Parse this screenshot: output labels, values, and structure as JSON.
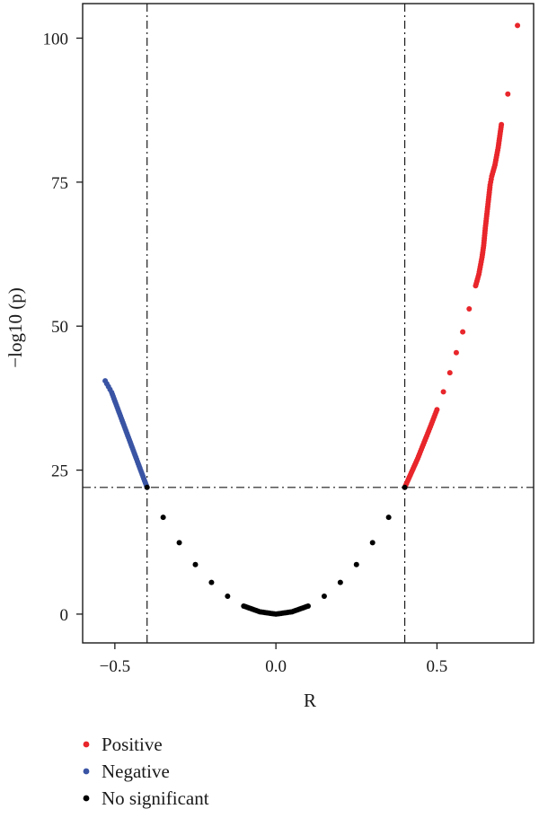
{
  "chart_data": {
    "type": "scatter",
    "title": "",
    "xlabel": "R",
    "ylabel": "−log10 (p)",
    "xlim": [
      -0.6,
      0.8
    ],
    "ylim": [
      -5,
      106
    ],
    "x_ticks": [
      -0.5,
      0.0,
      0.5
    ],
    "x_tick_labels": [
      "−0.5",
      "0.0",
      "0.5"
    ],
    "y_ticks": [
      0,
      25,
      50,
      75,
      100
    ],
    "y_tick_labels": [
      "0",
      "25",
      "50",
      "75",
      "100"
    ],
    "grid": false,
    "legend_position": "bottom-left",
    "thresholds": {
      "r_negative": -0.4,
      "r_positive": 0.4,
      "neg_log10_p": 22
    },
    "series": [
      {
        "name": "Positive",
        "color": "#e8262b",
        "points": [
          [
            0.4,
            22.0
          ],
          [
            0.42,
            24.5
          ],
          [
            0.44,
            27.0
          ],
          [
            0.46,
            29.8
          ],
          [
            0.48,
            32.6
          ],
          [
            0.5,
            35.5
          ],
          [
            0.52,
            38.6
          ],
          [
            0.54,
            41.9
          ],
          [
            0.56,
            45.4
          ],
          [
            0.58,
            49.0
          ],
          [
            0.6,
            53.0
          ],
          [
            0.62,
            57.0
          ],
          [
            0.63,
            59.0
          ],
          [
            0.64,
            62.0
          ],
          [
            0.645,
            64.0
          ],
          [
            0.65,
            67.0
          ],
          [
            0.655,
            69.5
          ],
          [
            0.66,
            72.0
          ],
          [
            0.665,
            74.5
          ],
          [
            0.67,
            76.0
          ],
          [
            0.68,
            78.0
          ],
          [
            0.69,
            81.0
          ],
          [
            0.695,
            83.0
          ],
          [
            0.7,
            85.0
          ],
          [
            0.72,
            90.3
          ],
          [
            0.75,
            102.2
          ]
        ]
      },
      {
        "name": "Negative",
        "color": "#3a54a4",
        "points": [
          [
            -0.4,
            22.0
          ],
          [
            -0.41,
            23.5
          ],
          [
            -0.42,
            25.0
          ],
          [
            -0.43,
            26.5
          ],
          [
            -0.44,
            28.0
          ],
          [
            -0.45,
            29.5
          ],
          [
            -0.46,
            31.0
          ],
          [
            -0.47,
            32.5
          ],
          [
            -0.48,
            34.0
          ],
          [
            -0.49,
            35.5
          ],
          [
            -0.5,
            37.0
          ],
          [
            -0.51,
            38.5
          ],
          [
            -0.52,
            39.5
          ],
          [
            -0.53,
            40.5
          ]
        ]
      },
      {
        "name": "No significant",
        "color": "#000000",
        "points": [
          [
            -0.4,
            22.0
          ],
          [
            -0.35,
            16.8
          ],
          [
            -0.3,
            12.4
          ],
          [
            -0.25,
            8.6
          ],
          [
            -0.2,
            5.5
          ],
          [
            -0.15,
            3.1
          ],
          [
            -0.1,
            1.4
          ],
          [
            -0.05,
            0.4
          ],
          [
            0.0,
            0.0
          ],
          [
            0.05,
            0.4
          ],
          [
            0.1,
            1.4
          ],
          [
            0.15,
            3.1
          ],
          [
            0.2,
            5.5
          ],
          [
            0.25,
            8.6
          ],
          [
            0.3,
            12.4
          ],
          [
            0.35,
            16.8
          ],
          [
            0.4,
            22.0
          ]
        ]
      }
    ]
  }
}
